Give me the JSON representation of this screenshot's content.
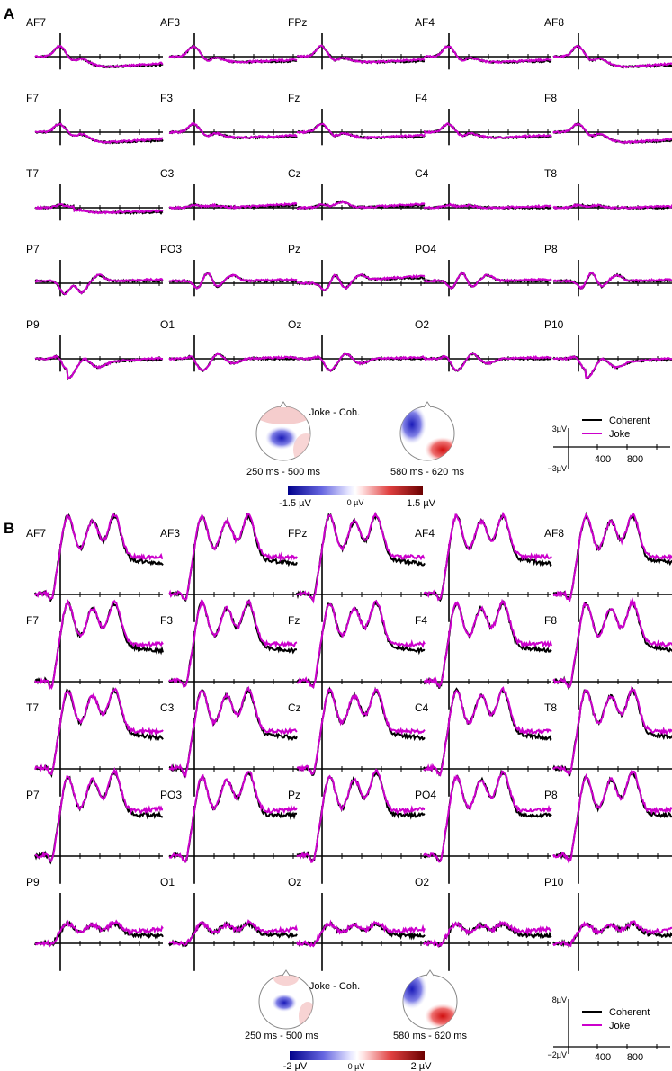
{
  "panel_A": {
    "letter": "A",
    "electrodes": [
      [
        "AF7",
        "AF3",
        "FPz",
        "AF4",
        "AF8"
      ],
      [
        "F7",
        "F3",
        "Fz",
        "F4",
        "F8"
      ],
      [
        "T7",
        "C3",
        "Cz",
        "C4",
        "T8"
      ],
      [
        "P7",
        "PO3",
        "Pz",
        "PO4",
        "P8"
      ],
      [
        "P9",
        "O1",
        "Oz",
        "O2",
        "P10"
      ]
    ],
    "topo_title": "Joke - Coh.",
    "topo_windows": [
      "250 ms - 500 ms",
      "580 ms - 620 ms"
    ],
    "colorbar": {
      "min_label": "-1.5 µV",
      "zero_label": "0 µV",
      "max_label": "1.5 µV"
    },
    "scale": {
      "pos_label": "3µV",
      "neg_label": "−3µV",
      "tick_labels": [
        "400",
        "800"
      ]
    },
    "legend": [
      "Coherent",
      "Joke"
    ]
  },
  "panel_B": {
    "letter": "B",
    "electrodes": [
      [
        "AF7",
        "AF3",
        "FPz",
        "AF4",
        "AF8"
      ],
      [
        "F7",
        "F3",
        "Fz",
        "F4",
        "F8"
      ],
      [
        "T7",
        "C3",
        "Cz",
        "C4",
        "T8"
      ],
      [
        "P7",
        "PO3",
        "Pz",
        "PO4",
        "P8"
      ],
      [
        "P9",
        "O1",
        "Oz",
        "O2",
        "P10"
      ]
    ],
    "topo_title": "Joke - Coh.",
    "topo_windows": [
      "250 ms - 500 ms",
      "580 ms - 620 ms"
    ],
    "colorbar": {
      "min_label": "-2 µV",
      "zero_label": "0 µV",
      "max_label": "2 µV"
    },
    "scale": {
      "pos_label": "8µV",
      "neg_label": "−2µV",
      "tick_labels": [
        "400",
        "800"
      ]
    },
    "legend": [
      "Coherent",
      "Joke"
    ]
  },
  "colors": {
    "coherent": "#000000",
    "joke": "#cc00cc"
  },
  "chart_data": [
    {
      "type": "line",
      "panel": "A",
      "xlabel": "",
      "ylabel": "",
      "x_unit": "ms",
      "y_unit": "µV",
      "xlim": [
        -100,
        1100
      ],
      "ylim": [
        -3,
        3
      ],
      "series": [
        {
          "name": "Coherent"
        },
        {
          "name": "Joke"
        }
      ]
    },
    {
      "type": "line",
      "panel": "B",
      "xlabel": "",
      "ylabel": "",
      "x_unit": "ms",
      "y_unit": "µV",
      "xlim": [
        -100,
        1100
      ],
      "ylim": [
        -2,
        8
      ],
      "series": [
        {
          "name": "Coherent"
        },
        {
          "name": "Joke"
        }
      ]
    }
  ]
}
